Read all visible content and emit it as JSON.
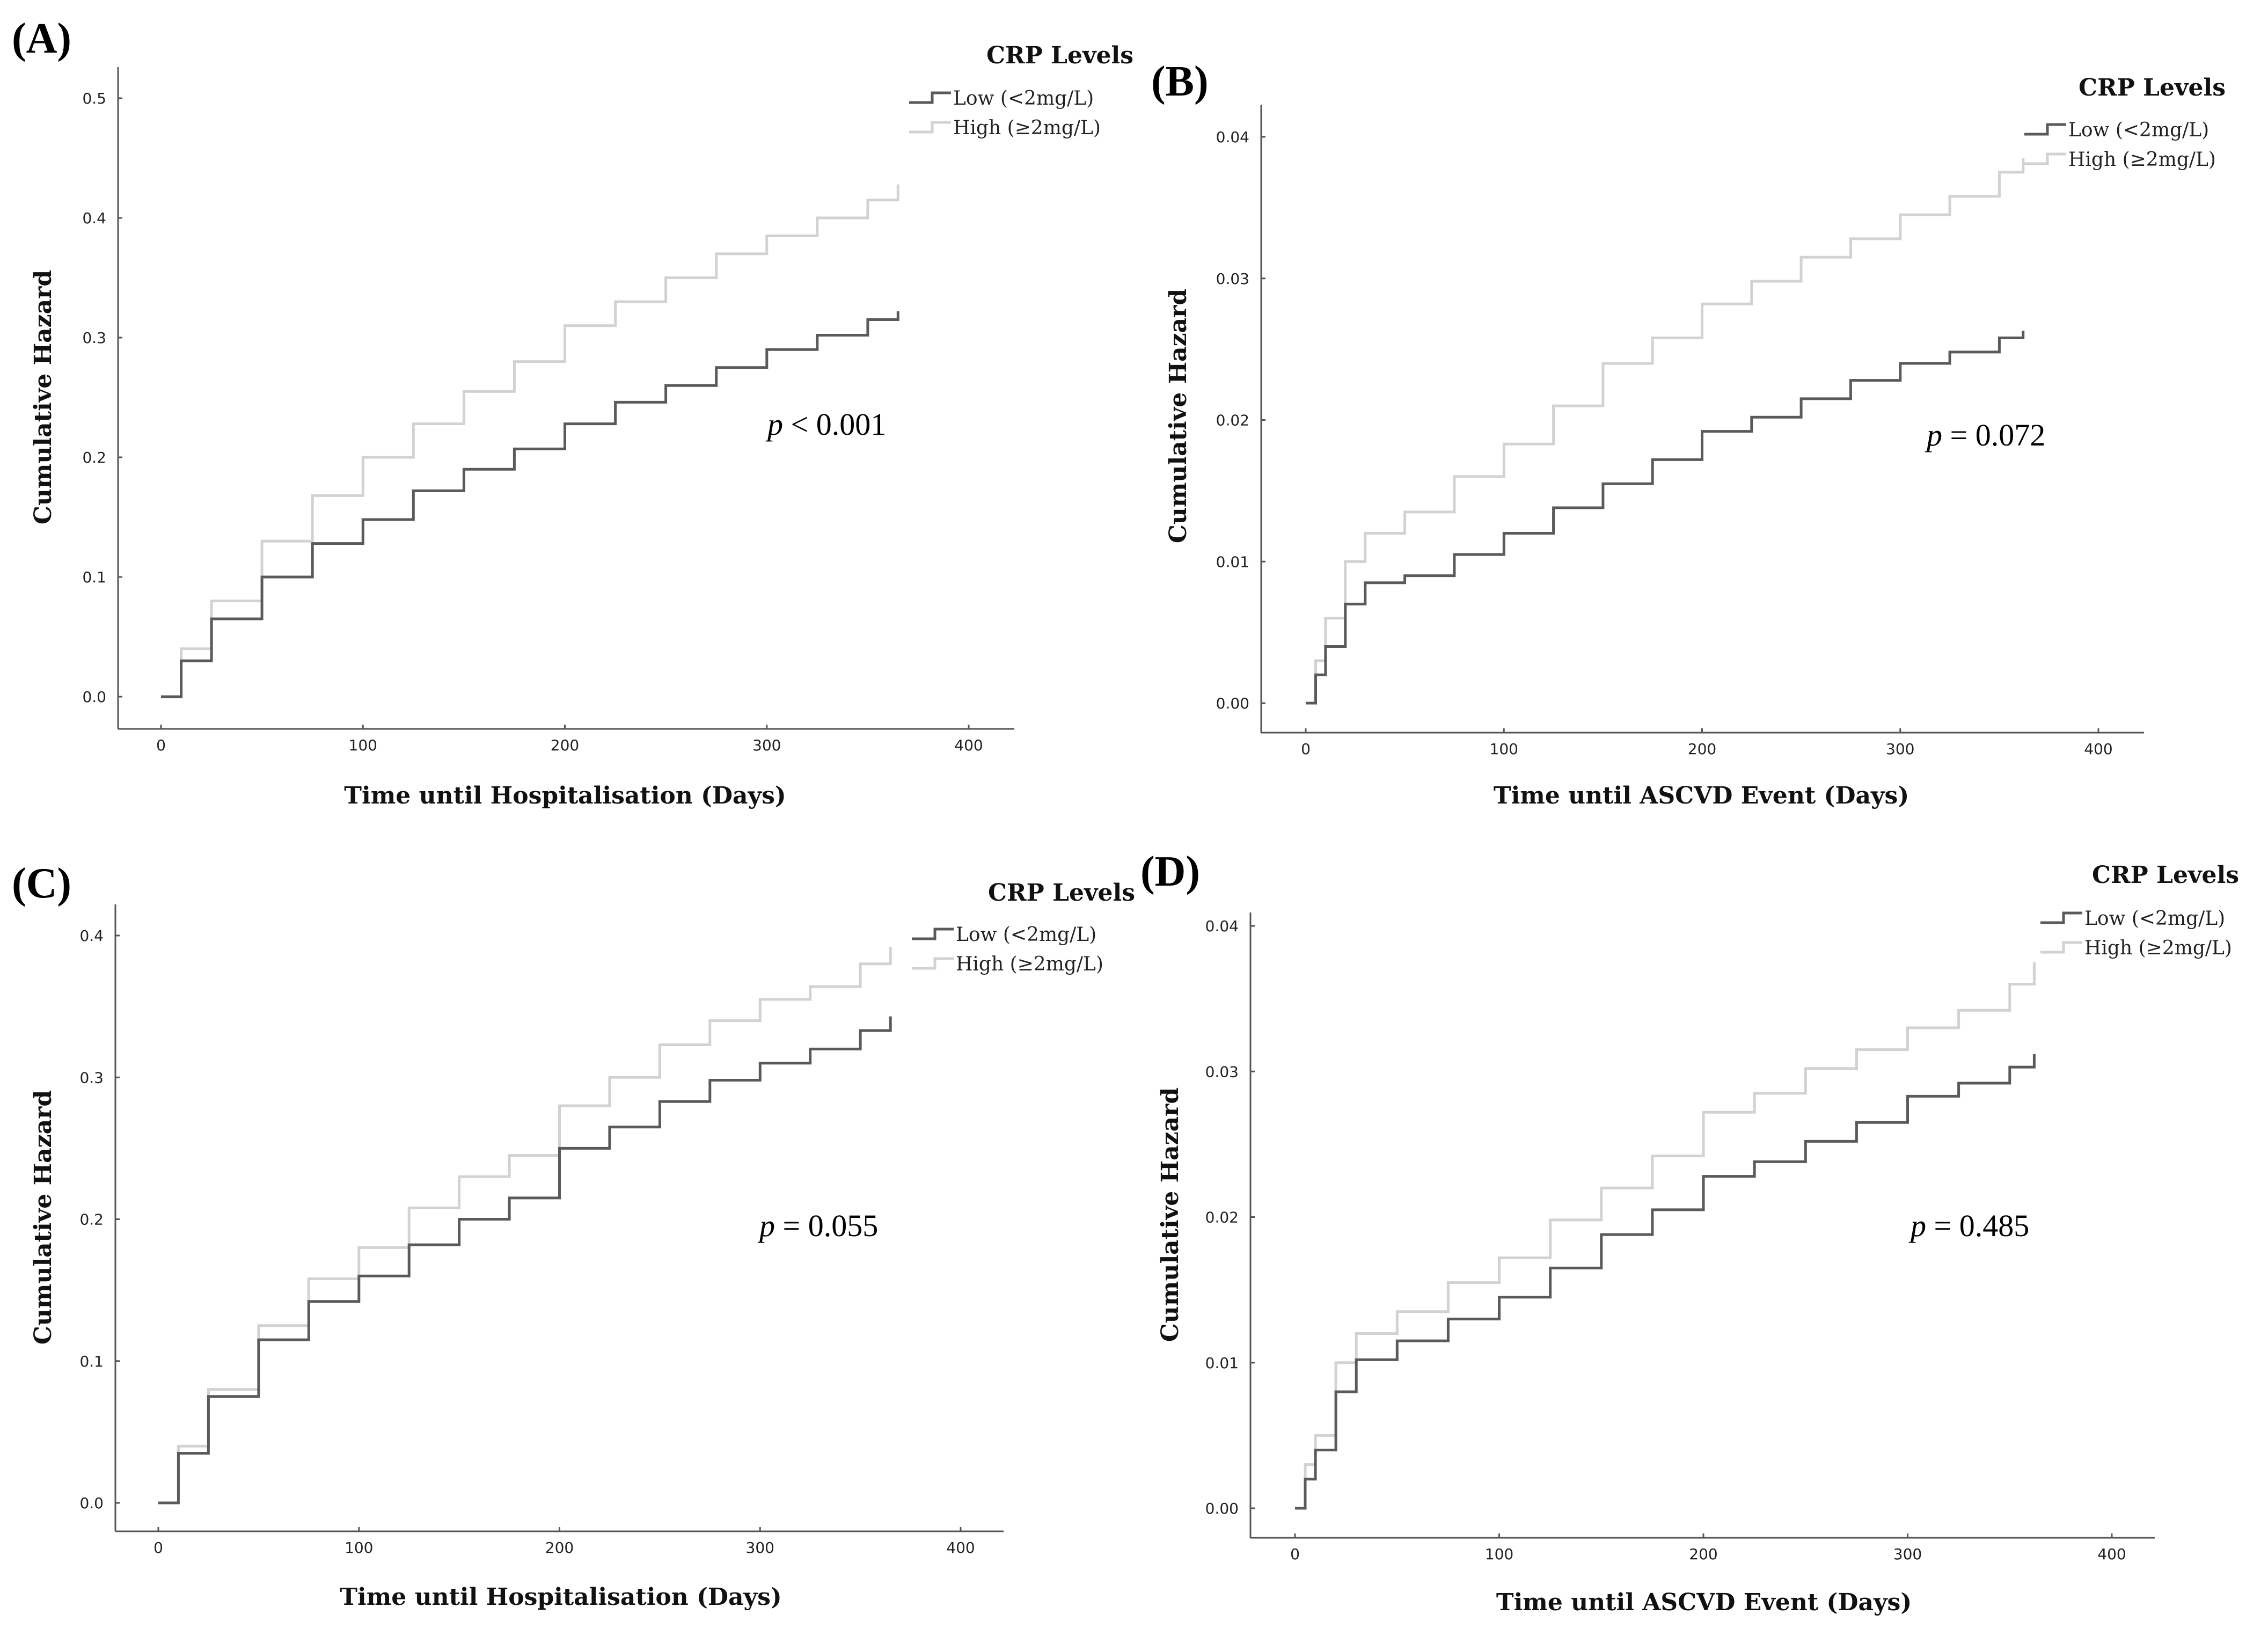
{
  "colors": {
    "low": "#5a5a5a",
    "high": "#d2d2d2",
    "axis": "#555555",
    "text": "#111111"
  },
  "chart_data": [
    {
      "panel": "(A)",
      "type": "line",
      "xlabel": "Time until Hospitalisation (Days)",
      "ylabel": "Cumulative Hazard",
      "xlim": [
        0,
        400
      ],
      "ylim": [
        0,
        0.5
      ],
      "xticks": [
        0,
        100,
        200,
        300,
        400
      ],
      "xtick_labels": [
        "0",
        "100",
        "200",
        "300",
        "400"
      ],
      "yticks": [
        0,
        0.1,
        0.2,
        0.3,
        0.4,
        0.5
      ],
      "ytick_labels": [
        "0.0",
        "0.1",
        "0.2",
        "0.3",
        "0.4",
        "0.5"
      ],
      "legend": {
        "title": "CRP Levels",
        "position": "top-right"
      },
      "annotation": {
        "p_symbol": "p",
        "p_text": " < 0.001"
      },
      "series": [
        {
          "key": "low",
          "name": "Low (<2mg/L)",
          "x": [
            0,
            10,
            25,
            50,
            75,
            100,
            125,
            150,
            175,
            200,
            225,
            250,
            275,
            300,
            325,
            350,
            365
          ],
          "y": [
            0,
            0.03,
            0.065,
            0.1,
            0.128,
            0.148,
            0.172,
            0.19,
            0.207,
            0.228,
            0.246,
            0.26,
            0.275,
            0.29,
            0.302,
            0.315,
            0.322
          ]
        },
        {
          "key": "high",
          "name": "High (≥2mg/L)",
          "x": [
            0,
            10,
            25,
            50,
            75,
            100,
            125,
            150,
            175,
            200,
            225,
            250,
            275,
            300,
            325,
            350,
            365
          ],
          "y": [
            0,
            0.04,
            0.08,
            0.13,
            0.168,
            0.2,
            0.228,
            0.255,
            0.28,
            0.31,
            0.33,
            0.35,
            0.37,
            0.385,
            0.4,
            0.415,
            0.428
          ]
        }
      ]
    },
    {
      "panel": "(B)",
      "type": "line",
      "xlabel": "Time until ASCVD Event (Days)",
      "ylabel": "Cumulative Hazard",
      "xlim": [
        0,
        400
      ],
      "ylim": [
        0,
        0.04
      ],
      "xticks": [
        0,
        100,
        200,
        300,
        400
      ],
      "xtick_labels": [
        "0",
        "100",
        "200",
        "300",
        "400"
      ],
      "yticks": [
        0,
        0.01,
        0.02,
        0.03,
        0.04
      ],
      "ytick_labels": [
        "0.00",
        "0.01",
        "0.02",
        "0.03",
        "0.04"
      ],
      "legend": {
        "title": "CRP Levels",
        "position": "top-right"
      },
      "annotation": {
        "p_symbol": "p",
        "p_text": " = 0.072"
      },
      "series": [
        {
          "key": "low",
          "name": "Low (<2mg/L)",
          "x": [
            0,
            5,
            10,
            20,
            30,
            50,
            75,
            100,
            125,
            150,
            175,
            200,
            225,
            250,
            275,
            300,
            325,
            350,
            362
          ],
          "y": [
            0,
            0.002,
            0.004,
            0.007,
            0.0085,
            0.009,
            0.0105,
            0.012,
            0.0138,
            0.0155,
            0.0172,
            0.0192,
            0.0202,
            0.0215,
            0.0228,
            0.024,
            0.0248,
            0.0258,
            0.0263
          ]
        },
        {
          "key": "high",
          "name": "High (≥2mg/L)",
          "x": [
            0,
            5,
            10,
            20,
            30,
            50,
            75,
            100,
            125,
            150,
            175,
            200,
            225,
            250,
            275,
            300,
            325,
            350,
            362
          ],
          "y": [
            0,
            0.003,
            0.006,
            0.01,
            0.012,
            0.0135,
            0.016,
            0.0183,
            0.021,
            0.024,
            0.0258,
            0.0282,
            0.0298,
            0.0315,
            0.0328,
            0.0345,
            0.0358,
            0.0375,
            0.0385
          ]
        }
      ]
    },
    {
      "panel": "(C)",
      "type": "line",
      "xlabel": "Time until Hospitalisation (Days)",
      "ylabel": "Cumulative Hazard",
      "xlim": [
        0,
        400
      ],
      "ylim": [
        0,
        0.4
      ],
      "xticks": [
        0,
        100,
        200,
        300,
        400
      ],
      "xtick_labels": [
        "0",
        "100",
        "200",
        "300",
        "400"
      ],
      "yticks": [
        0,
        0.1,
        0.2,
        0.3,
        0.4
      ],
      "ytick_labels": [
        "0.0",
        "0.1",
        "0.2",
        "0.3",
        "0.4"
      ],
      "legend": {
        "title": "CRP Levels",
        "position": "top-right"
      },
      "annotation": {
        "p_symbol": "p",
        "p_text": " = 0.055"
      },
      "series": [
        {
          "key": "low",
          "name": "Low (<2mg/L)",
          "x": [
            0,
            10,
            25,
            50,
            75,
            100,
            125,
            150,
            175,
            200,
            225,
            250,
            275,
            300,
            325,
            350,
            365
          ],
          "y": [
            0,
            0.035,
            0.075,
            0.115,
            0.142,
            0.16,
            0.182,
            0.2,
            0.215,
            0.25,
            0.265,
            0.283,
            0.298,
            0.31,
            0.32,
            0.333,
            0.343
          ]
        },
        {
          "key": "high",
          "name": "High (≥2mg/L)",
          "x": [
            0,
            10,
            25,
            50,
            75,
            100,
            125,
            150,
            175,
            200,
            225,
            250,
            275,
            300,
            325,
            350,
            365
          ],
          "y": [
            0,
            0.04,
            0.08,
            0.125,
            0.158,
            0.18,
            0.208,
            0.23,
            0.245,
            0.28,
            0.3,
            0.323,
            0.34,
            0.355,
            0.364,
            0.38,
            0.392
          ]
        }
      ]
    },
    {
      "panel": "(D)",
      "type": "line",
      "xlabel": "Time until ASCVD Event (Days)",
      "ylabel": "Cumulative Hazard",
      "xlim": [
        0,
        400
      ],
      "ylim": [
        0,
        0.04
      ],
      "xticks": [
        0,
        100,
        200,
        300,
        400
      ],
      "xtick_labels": [
        "0",
        "100",
        "200",
        "300",
        "400"
      ],
      "yticks": [
        0,
        0.01,
        0.02,
        0.03,
        0.04
      ],
      "ytick_labels": [
        "0.00",
        "0.01",
        "0.02",
        "0.03",
        "0.04"
      ],
      "legend": {
        "title": "CRP Levels",
        "position": "top-right"
      },
      "annotation": {
        "p_symbol": "p",
        "p_text": " = 0.485"
      },
      "series": [
        {
          "key": "low",
          "name": "Low (<2mg/L)",
          "x": [
            0,
            5,
            10,
            20,
            30,
            50,
            75,
            100,
            125,
            150,
            175,
            200,
            225,
            250,
            275,
            300,
            325,
            350,
            362
          ],
          "y": [
            0,
            0.002,
            0.004,
            0.008,
            0.0102,
            0.0115,
            0.013,
            0.0145,
            0.0165,
            0.0188,
            0.0205,
            0.0228,
            0.0238,
            0.0252,
            0.0265,
            0.0283,
            0.0292,
            0.0303,
            0.0312
          ]
        },
        {
          "key": "high",
          "name": "High (≥2mg/L)",
          "x": [
            0,
            5,
            10,
            20,
            30,
            50,
            75,
            100,
            125,
            150,
            175,
            200,
            225,
            250,
            275,
            300,
            325,
            350,
            362
          ],
          "y": [
            0,
            0.003,
            0.005,
            0.01,
            0.012,
            0.0135,
            0.0155,
            0.0172,
            0.0198,
            0.022,
            0.0242,
            0.0272,
            0.0285,
            0.0302,
            0.0315,
            0.033,
            0.0342,
            0.036,
            0.0375
          ]
        }
      ]
    }
  ]
}
